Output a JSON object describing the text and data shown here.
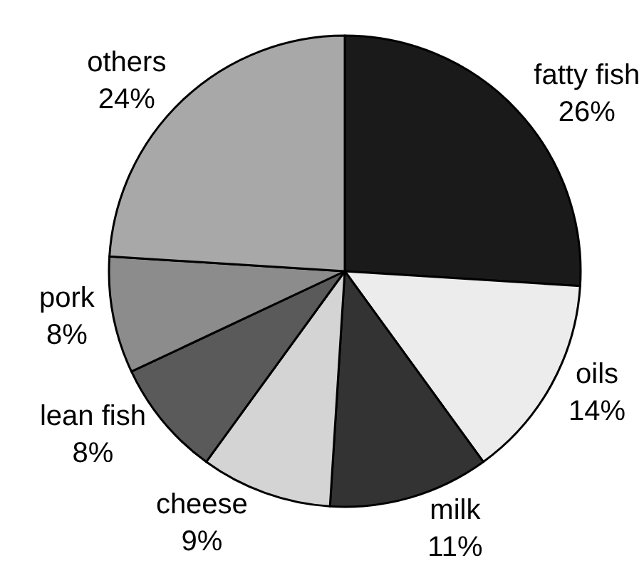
{
  "chart_data": {
    "type": "pie",
    "categories": [
      "fatty fish",
      "oils",
      "milk",
      "cheese",
      "lean fish",
      "pork",
      "others"
    ],
    "values": [
      26,
      14,
      11,
      9,
      8,
      8,
      24
    ],
    "value_labels": [
      "26%",
      "14%",
      "11%",
      "9%",
      "8%",
      "8%",
      "24%"
    ],
    "colors": [
      "#1a1a1a",
      "#ececec",
      "#333333",
      "#d4d4d4",
      "#5a5a5a",
      "#8c8c8c",
      "#a8a8a8"
    ]
  }
}
